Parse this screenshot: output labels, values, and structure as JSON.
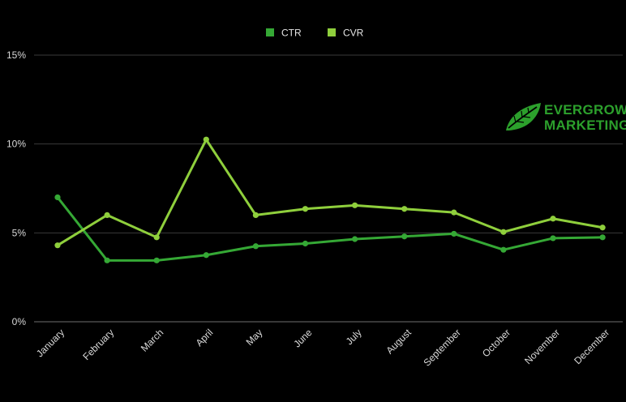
{
  "brand": {
    "line1": "EVERGROW",
    "line2": "MARKETING",
    "color": "#2ca02c",
    "icon": "leaf-icon"
  },
  "chart_data": {
    "type": "line",
    "categories": [
      "January",
      "February",
      "March",
      "April",
      "May",
      "June",
      "July",
      "August",
      "September",
      "October",
      "November",
      "December"
    ],
    "series": [
      {
        "name": "CTR",
        "color": "#35a835",
        "values": [
          7.0,
          3.45,
          3.45,
          3.75,
          4.25,
          4.4,
          4.65,
          4.8,
          4.95,
          4.05,
          4.7,
          4.75
        ]
      },
      {
        "name": "CVR",
        "color": "#8fcf3c",
        "values": [
          4.3,
          6.0,
          4.75,
          10.25,
          6.0,
          6.35,
          6.55,
          6.35,
          6.15,
          5.05,
          5.8,
          5.3
        ]
      }
    ],
    "y_ticks": [
      "0%",
      "5%",
      "10%",
      "15%"
    ],
    "ylim": [
      0,
      15
    ],
    "grid": true,
    "legend_position": "top-center",
    "title": "",
    "xlabel": "",
    "ylabel": ""
  }
}
